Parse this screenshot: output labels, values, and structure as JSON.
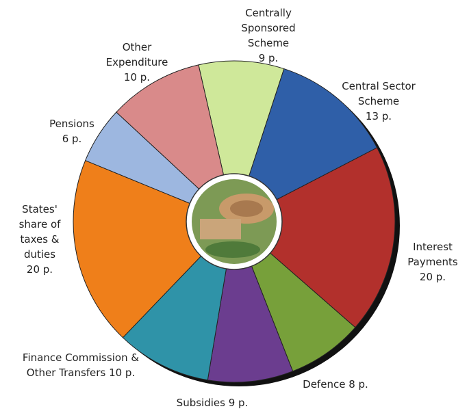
{
  "chart_data": {
    "type": "pie",
    "categories": [
      "Centrally Sponsored Scheme",
      "Central Sector Scheme",
      "Interest Payments",
      "Defence",
      "Subsidies",
      "Finance Commission & Other Transfers",
      "States' share of taxes & duties",
      "Pensions",
      "Other Expenditure"
    ],
    "values": [
      9,
      13,
      20,
      8,
      9,
      10,
      20,
      6,
      10
    ],
    "value_labels": [
      "9 p.",
      "13 p.",
      "20 p.",
      "8 p.",
      "9 p.",
      "10 p.",
      "20 p.",
      "6 p.",
      "10 p."
    ],
    "colors": [
      "#cfe89a",
      "#2f5fa8",
      "#b2302c",
      "#77a03a",
      "#6b3d8f",
      "#2f93a8",
      "#ef7f1a",
      "#9db7e0",
      "#d98a8a"
    ]
  }
}
